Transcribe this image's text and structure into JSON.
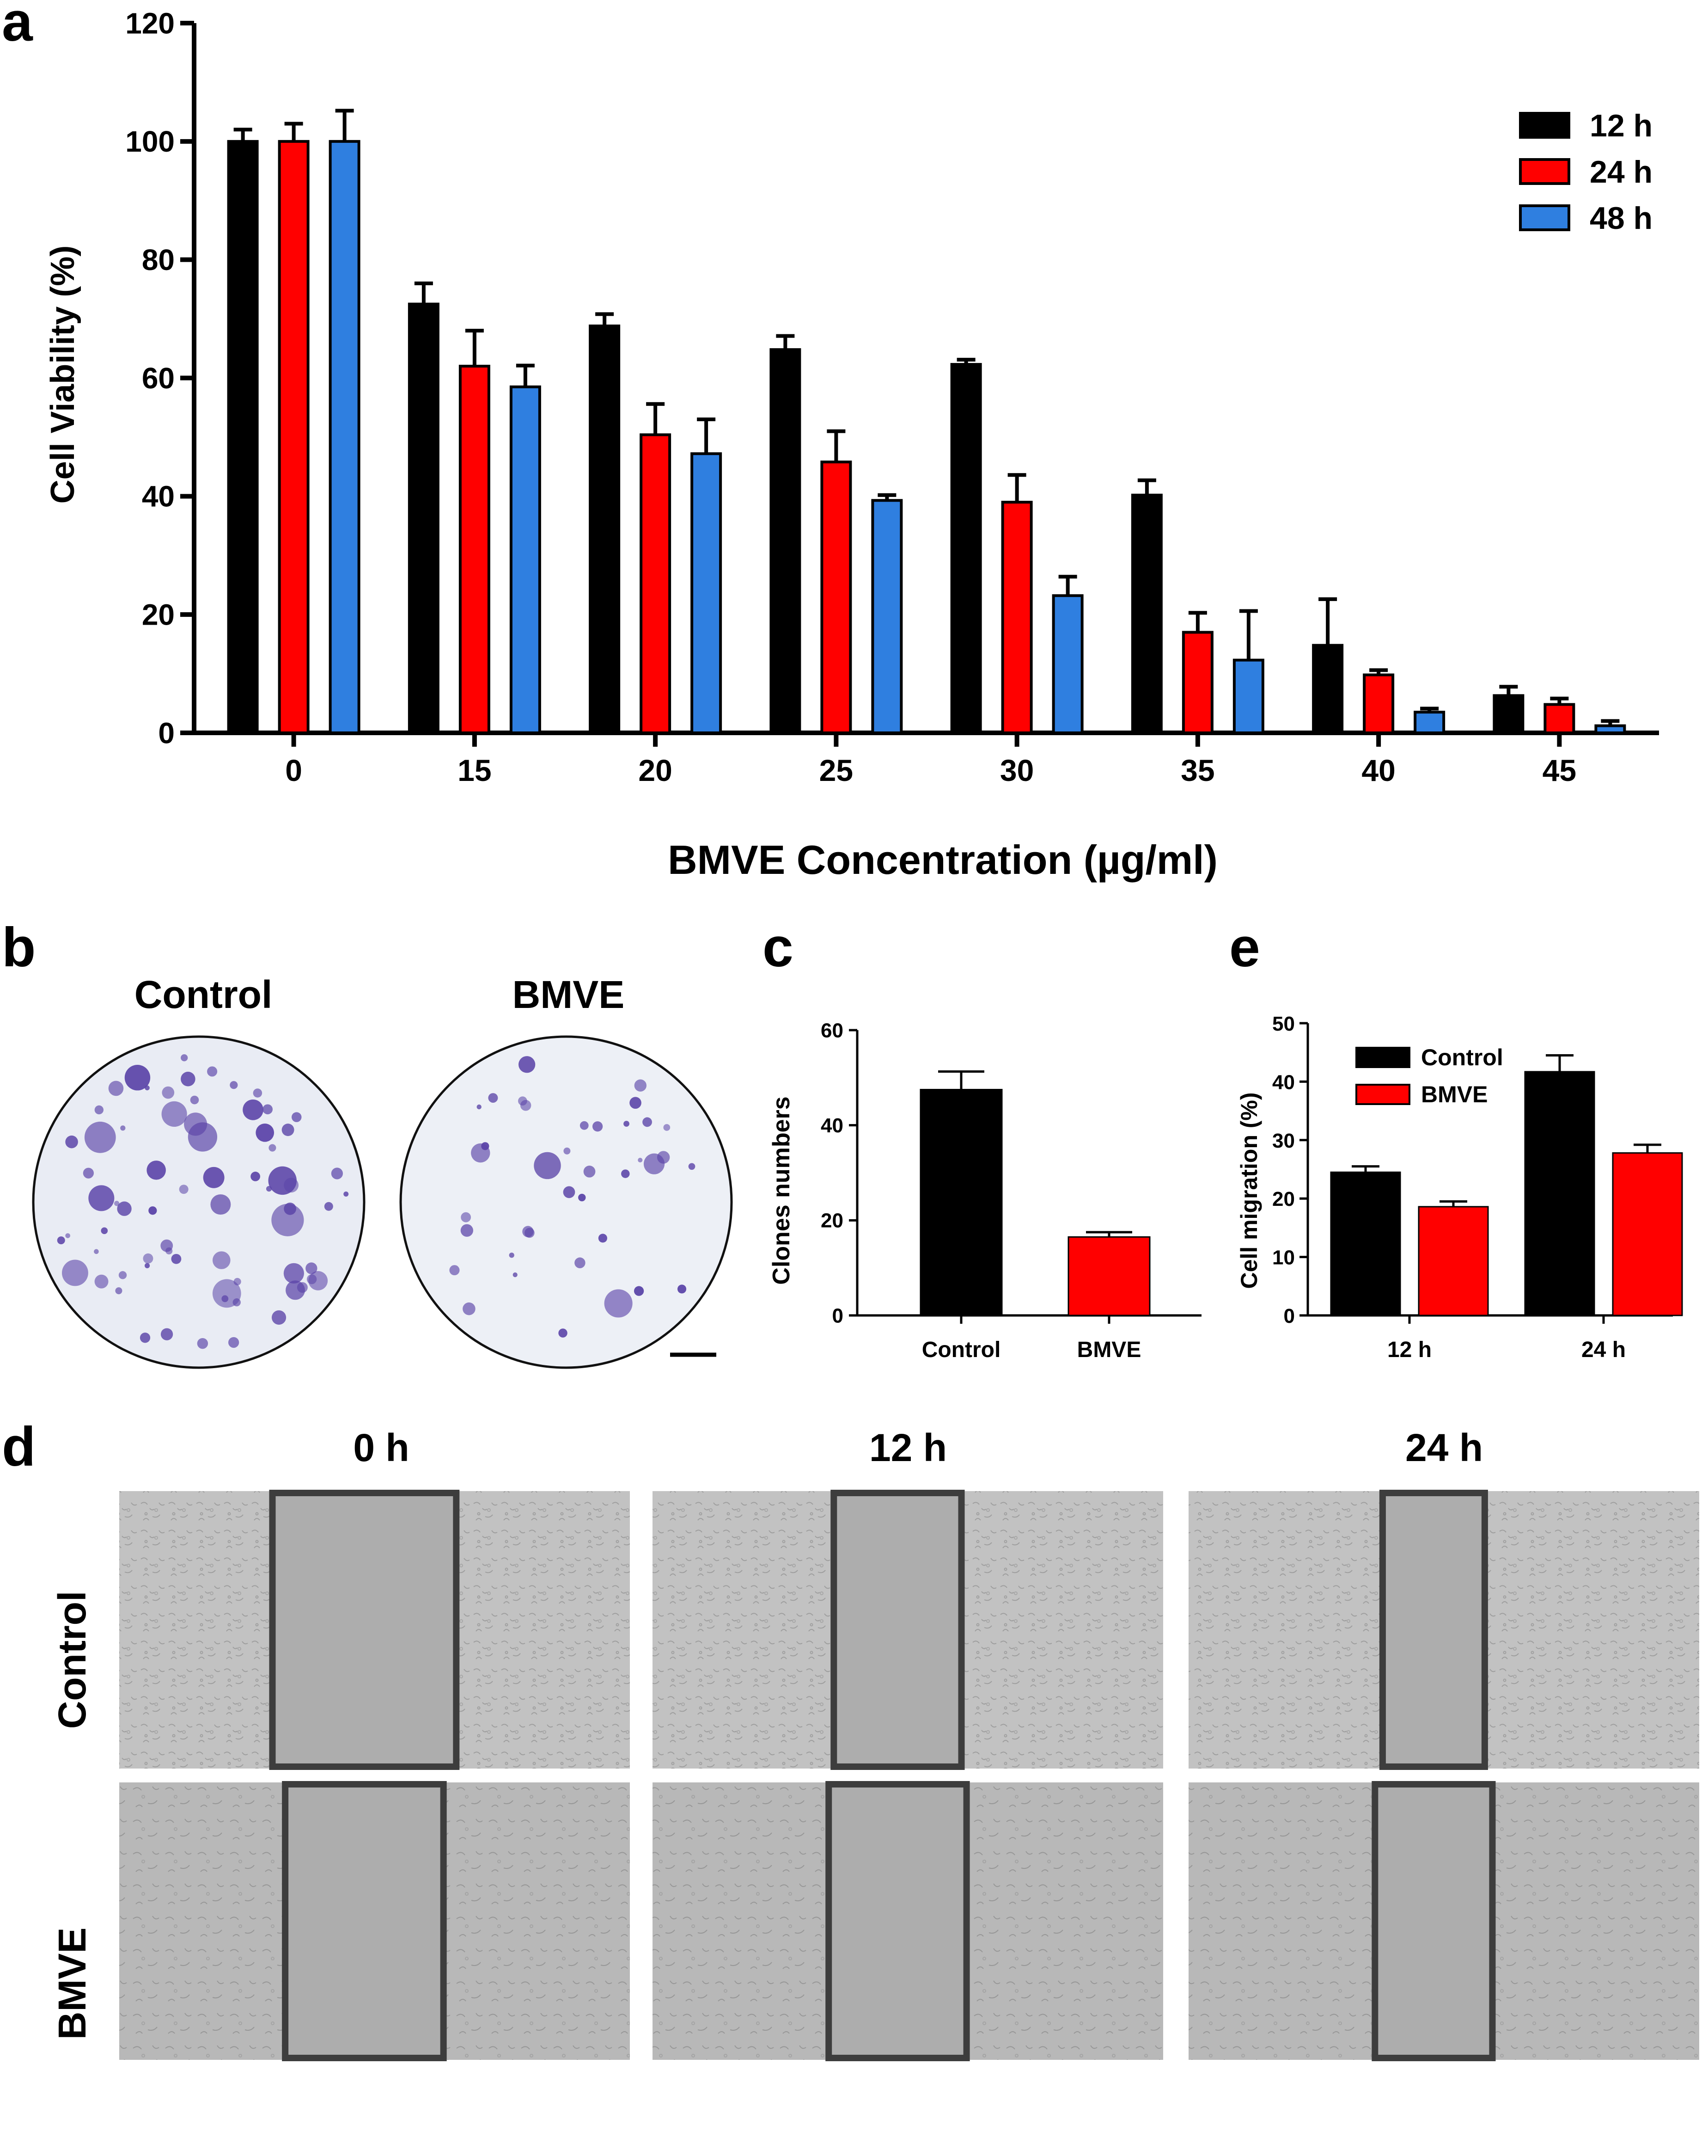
{
  "panels": {
    "a": "a",
    "b": "b",
    "c": "c",
    "d": "d",
    "e": "e"
  },
  "panel_b": {
    "labels": [
      "Control",
      "BMVE"
    ],
    "plate_color": "#eceff5",
    "colony_color": "#5b44a8"
  },
  "panel_d": {
    "time_labels": [
      "0 h",
      "12 h",
      "24 h"
    ],
    "row_labels": [
      "Control",
      "BMVE"
    ],
    "gap_fraction": [
      [
        0.36,
        0.25,
        0.2
      ],
      [
        0.31,
        0.27,
        0.23
      ]
    ]
  },
  "colors": {
    "black": "#000000",
    "red": "#ff0000",
    "blue": "#2f7fe0",
    "frame": "#3d3d3d"
  },
  "chart_data": [
    {
      "id": "a",
      "type": "bar",
      "title": "",
      "xlabel": "BMVE Concentration (µg/ml)",
      "ylabel": "Cell Viability (%)",
      "ylim": [
        0,
        120
      ],
      "yticks": [
        "0",
        "20",
        "40",
        "60",
        "80",
        "100",
        "120"
      ],
      "categories": [
        "0",
        "15",
        "20",
        "25",
        "30",
        "35",
        "40",
        "45"
      ],
      "legend_position": "top-right",
      "series": [
        {
          "name": "12 h",
          "color": "#000000",
          "values": [
            100,
            72.5,
            68.8,
            64.8,
            62.3,
            40.2,
            14.8,
            6.3
          ],
          "errors": [
            2,
            3.5,
            2,
            2.3,
            0.8,
            2.5,
            7.8,
            1.5
          ]
        },
        {
          "name": "24 h",
          "color": "#ff0000",
          "values": [
            100,
            62,
            50.4,
            45.8,
            39,
            17,
            9.8,
            4.8
          ],
          "errors": [
            3,
            6,
            5.2,
            5.2,
            4.6,
            3.3,
            0.8,
            1
          ]
        },
        {
          "name": "48 h",
          "color": "#2f7fe0",
          "values": [
            100,
            58.5,
            47.2,
            39.3,
            23.2,
            12.3,
            3.5,
            1.2
          ],
          "errors": [
            5.2,
            3.6,
            5.8,
            0.9,
            3.2,
            8.3,
            0.6,
            0.8
          ]
        }
      ]
    },
    {
      "id": "c",
      "type": "bar",
      "title": "",
      "xlabel": "",
      "ylabel": "Clones numbers",
      "ylim": [
        0,
        60
      ],
      "yticks": [
        "0",
        "20",
        "40",
        "60"
      ],
      "categories": [
        "Control",
        "BMVE"
      ],
      "values": [
        47.5,
        16.5
      ],
      "errors": [
        3.8,
        1
      ],
      "colors": [
        "#000000",
        "#ff0000"
      ]
    },
    {
      "id": "e",
      "type": "bar",
      "title": "",
      "xlabel": "",
      "ylabel": "Cell migration (%)",
      "ylim": [
        0,
        50
      ],
      "yticks": [
        "0",
        "10",
        "20",
        "30",
        "40",
        "50"
      ],
      "categories": [
        "12 h",
        "24 h"
      ],
      "legend_position": "top-left",
      "series": [
        {
          "name": "Control",
          "color": "#000000",
          "values": [
            24.5,
            41.7
          ],
          "errors": [
            1,
            2.8
          ]
        },
        {
          "name": "BMVE",
          "color": "#ff0000",
          "values": [
            18.6,
            27.8
          ],
          "errors": [
            0.9,
            1.4
          ]
        }
      ]
    }
  ]
}
